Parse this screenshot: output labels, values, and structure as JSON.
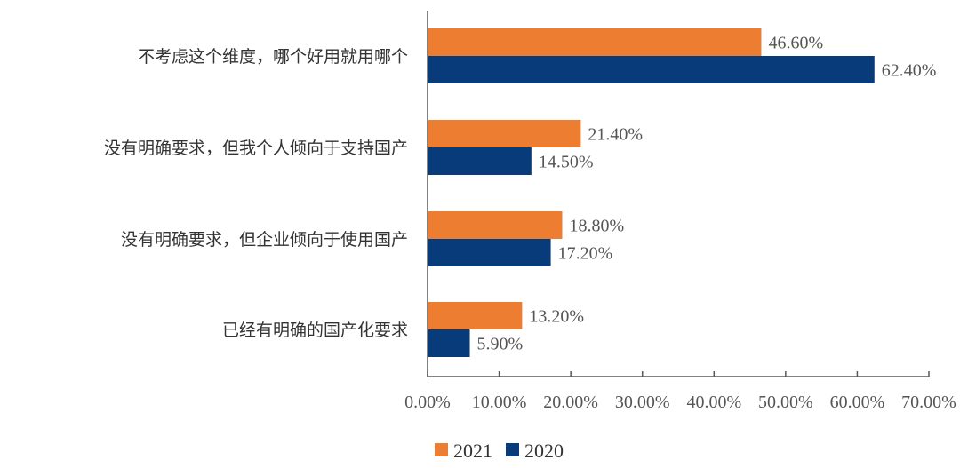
{
  "chart_data": {
    "type": "bar",
    "orientation": "horizontal",
    "categories": [
      "不考虑这个维度，哪个好用就用哪个",
      "没有明确要求，但我个人倾向于支持国产",
      "没有明确要求，但企业倾向于使用国产",
      "已经有明确的国产化要求"
    ],
    "series": [
      {
        "name": "2021",
        "color": "#ED7D31",
        "values": [
          46.6,
          21.4,
          18.8,
          13.2
        ],
        "labels": [
          "46.60%",
          "21.40%",
          "18.80%",
          "13.20%"
        ]
      },
      {
        "name": "2020",
        "color": "#073B7A",
        "values": [
          62.4,
          14.5,
          17.2,
          5.9
        ],
        "labels": [
          "62.40%",
          "14.50%",
          "17.20%",
          "5.90%"
        ]
      }
    ],
    "xlim": [
      0,
      70
    ],
    "xticks": [
      0,
      10,
      20,
      30,
      40,
      50,
      60,
      70
    ],
    "xtick_labels": [
      "0.00%",
      "10.00%",
      "20.00%",
      "30.00%",
      "40.00%",
      "50.00%",
      "60.00%",
      "70.00%"
    ],
    "title": "",
    "xlabel": "",
    "ylabel": "",
    "legend_position": "bottom",
    "grid": false
  }
}
